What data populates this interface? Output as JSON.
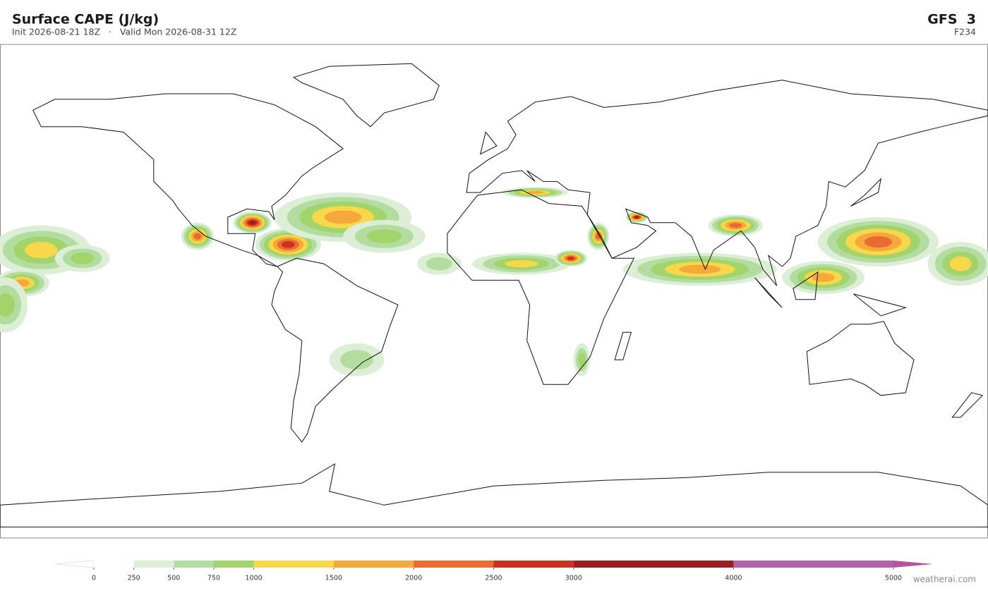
{
  "header": {
    "title": "Surface CAPE  (J/kg)",
    "subtitle": "Init 2026-08-21 18Z   ·   Valid Mon 2026-08-31 12Z",
    "model": "GFS  3",
    "forecast_hour": "F234"
  },
  "colorbar": {
    "lim": [
      0,
      5000
    ],
    "ticks": [
      0,
      250,
      500,
      750,
      1000,
      1500,
      2000,
      2500,
      3000,
      4000,
      5000
    ],
    "colors": [
      "#ffffff",
      "#dcefd6",
      "#b3dca0",
      "#a3d46b",
      "#f6d84a",
      "#f4a93a",
      "#ea6a30",
      "#c8321f",
      "#9a1d1f",
      "#b062a8"
    ],
    "under_color": "#ffffff",
    "over_color": "#b5539f"
  },
  "footer": {
    "credit": "weatherai.com"
  }
}
